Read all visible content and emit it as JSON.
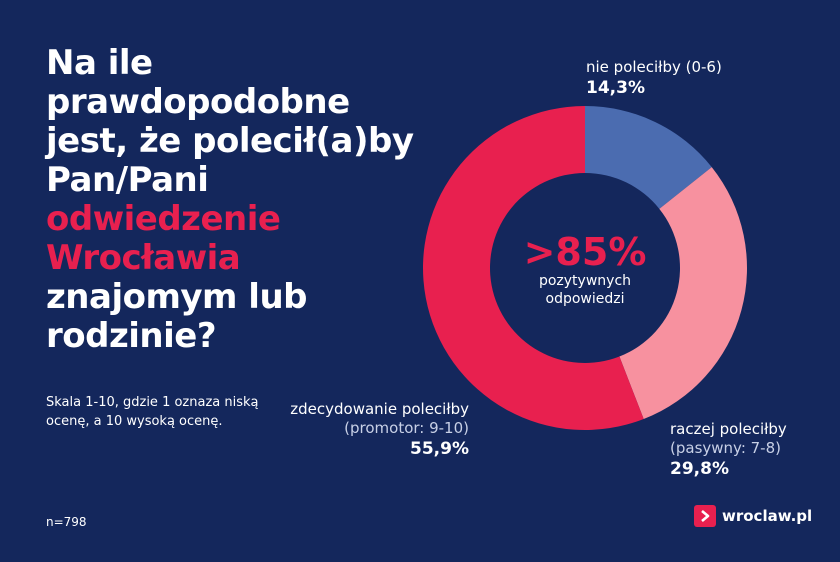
{
  "question": {
    "lines": [
      "Na ile",
      "prawdopodobne",
      "jest, że polecił(a)by",
      "Pan/Pani",
      "odwiedzenie",
      "Wrocławia",
      "znajomym lub",
      "rodzinie?"
    ]
  },
  "scale_note": "Skala 1-10, gdzie 1 oznaza niską ocenę, a 10 wysoką ocenę.",
  "sample": "n=798",
  "center": {
    "value": ">85%",
    "label_1": "pozytywnych",
    "label_2": "odpowiedzi"
  },
  "logo": {
    "text": "wroclaw.pl"
  },
  "colors": {
    "background": "#14275c",
    "accent": "#e8204f",
    "detractor": "#4b6cb0",
    "passive": "#f7919f",
    "promoter": "#e8204f"
  },
  "chart_data": {
    "type": "pie",
    "donut": true,
    "slices": [
      {
        "name": "nie poleciłby (0-6)",
        "note": "",
        "value": 14.3,
        "label": "14,3%",
        "color": "#4b6cb0"
      },
      {
        "name": "raczej poleciłby",
        "note": "(pasywny: 7-8)",
        "value": 29.8,
        "label": "29,8%",
        "color": "#f7919f"
      },
      {
        "name": "zdecydowanie poleciłby",
        "note": "(promotor: 9-10)",
        "value": 55.9,
        "label": "55,9%",
        "color": "#e8204f"
      }
    ]
  }
}
